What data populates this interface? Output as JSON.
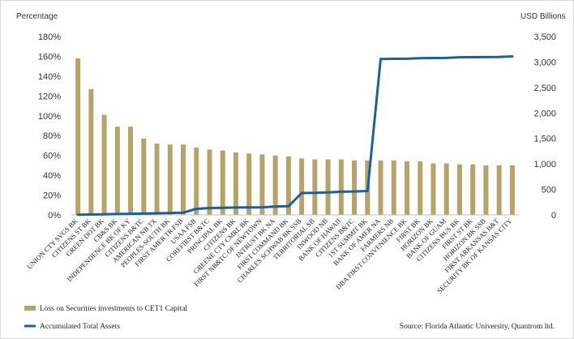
{
  "chart_data": {
    "type": "bar",
    "title": "",
    "y_left_label": "Percentage",
    "y_right_label": "USD Billions",
    "y_left_ticks": [
      "0%",
      "20%",
      "40%",
      "60%",
      "80%",
      "100%",
      "120%",
      "140%",
      "160%",
      "180%"
    ],
    "y_right_ticks": [
      "0",
      "500",
      "1,000",
      "1,500",
      "2,000",
      "2,500",
      "3,000",
      "3,500"
    ],
    "ylim_left": [
      0,
      180
    ],
    "ylim_right": [
      0,
      3500
    ],
    "categories": [
      "UNION CTY SVGS BK",
      "CITIZENS ST BK",
      "GREEN DOT BK",
      "CB&S BK",
      "INDEPENDENCE BK OF KY",
      "CITIZENS B&TC",
      "AMERICAN NB TX",
      "PEOPLES-SOUTH BK",
      "FIRST AMER TR FSB",
      "USAA FSB",
      "COREFIRST B&TC",
      "PRINCIPAL BK",
      "CITIZENS BK",
      "GREENE CTY CMRL BK",
      "FIRST NB&TC OF NEWTOWN",
      "INTRUST BK NA",
      "FIRST COMMAND BK",
      "CHARLES SCHWAB BK SSB",
      "TERRITORIAL SB",
      "INWOOD NB",
      "BANK OF HAWAII",
      "CITIZENS B&TC",
      "1ST SUMMIT BK",
      "BANK OF AMER NA",
      "FARMERS NB",
      "DBA FIRST CONVENIENCE BK",
      "FIRST BK",
      "HORIZON BK",
      "BANK OF GUAM",
      "CITIZENS BUS BK",
      "FIRST ST BK",
      "HORIZON BK SSB",
      "FIRST ARKANSAS B&T",
      "SECURITY BK OF KANSAS CITY"
    ],
    "series": [
      {
        "name": "Loss on Securities investments to CET1 Capital",
        "axis": "left",
        "type": "bar",
        "color": "#b5a36b",
        "values": [
          158,
          127,
          101,
          89,
          89,
          77,
          72,
          71,
          71,
          68,
          66,
          65,
          63,
          62,
          61,
          60,
          59,
          57,
          56,
          56,
          56,
          55,
          55,
          55,
          55,
          54,
          54,
          52,
          52,
          51,
          51,
          50,
          50,
          50
        ]
      },
      {
        "name": "Accumulated Total Assets",
        "axis": "right",
        "type": "line",
        "color": "#1f5f99",
        "values": [
          5,
          8,
          12,
          18,
          22,
          26,
          32,
          38,
          44,
          120,
          135,
          140,
          145,
          148,
          150,
          165,
          170,
          430,
          432,
          440,
          455,
          460,
          470,
          3060,
          3062,
          3064,
          3075,
          3078,
          3080,
          3092,
          3094,
          3096,
          3098,
          3110
        ]
      }
    ],
    "legend_position": "bottom-left",
    "grid": false,
    "source": "Source: Florida Atlantic University, Quantrom ltd."
  }
}
